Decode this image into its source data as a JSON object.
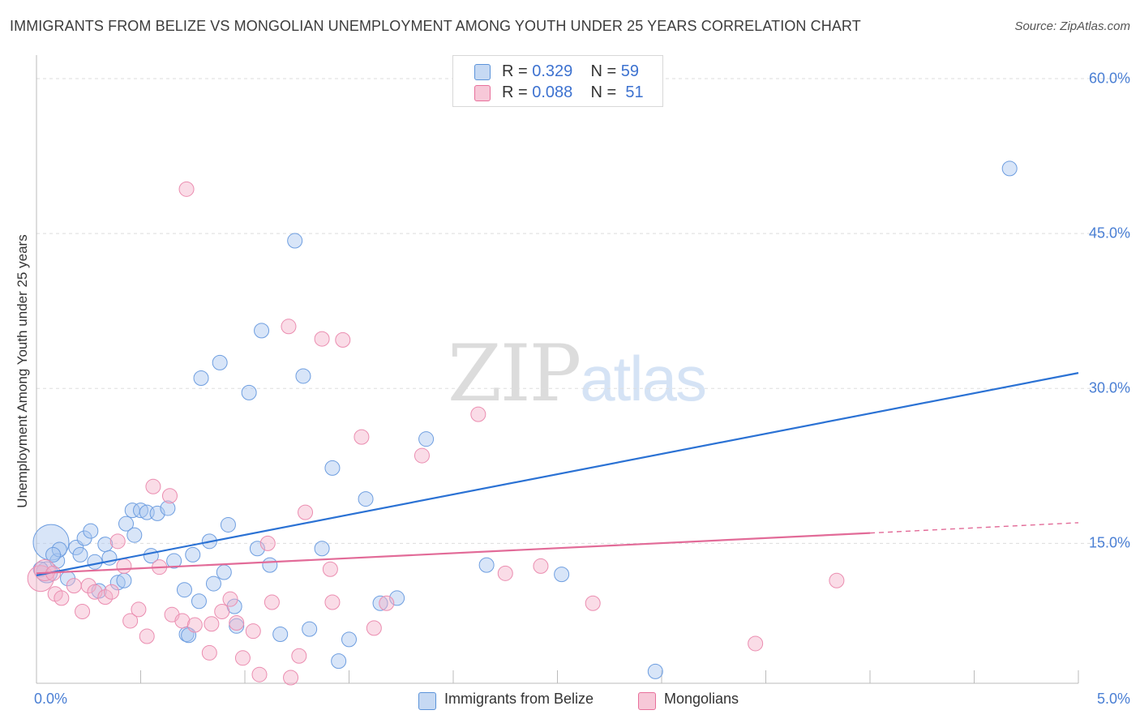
{
  "title": "IMMIGRANTS FROM BELIZE VS MONGOLIAN UNEMPLOYMENT AMONG YOUTH UNDER 25 YEARS CORRELATION CHART",
  "source": "Source: ZipAtlas.com",
  "watermark": {
    "zip": "ZIP",
    "atlas": "atlas"
  },
  "colors": {
    "blue": "#5b93d9",
    "blue_fill": "#c6d9f3",
    "pink": "#e8709b",
    "pink_fill": "#f7c8d8",
    "tick_text": "#4a7fd4",
    "grid": "#dddddd"
  },
  "legend": {
    "rows": [
      {
        "r_label": "R =",
        "r_value": "0.329",
        "n_label": "N =",
        "n_value": "59"
      },
      {
        "r_label": "R =",
        "r_value": "0.088",
        "n_label": "N =",
        "n_value": "51"
      }
    ]
  },
  "chart_data": {
    "type": "scatter",
    "title": "IMMIGRANTS FROM BELIZE VS MONGOLIAN UNEMPLOYMENT AMONG YOUTH UNDER 25 YEARS CORRELATION CHART",
    "xlabel": "",
    "ylabel": "Unemployment Among Youth under 25 years",
    "xlim": [
      0,
      5
    ],
    "ylim": [
      0,
      60
    ],
    "x_tick_labels": [
      "0.0%",
      "5.0%"
    ],
    "y_tick_labels": [
      "15.0%",
      "30.0%",
      "45.0%",
      "60.0%"
    ],
    "y_ticks": [
      15,
      30,
      45,
      60
    ],
    "series": [
      {
        "name": "Immigrants from Belize",
        "R": 0.329,
        "N": 59,
        "trend": {
          "x0": 0,
          "y0": 11.9,
          "x1": 5,
          "y1": 31.5
        },
        "points": [
          {
            "x": 0.07,
            "y": 15.1,
            "s": 22
          },
          {
            "x": 0.05,
            "y": 12.2,
            "s": 13
          },
          {
            "x": 0.1,
            "y": 13.3,
            "s": 9
          },
          {
            "x": 0.11,
            "y": 14.4,
            "s": 9
          },
          {
            "x": 0.15,
            "y": 11.6,
            "s": 9
          },
          {
            "x": 0.19,
            "y": 14.6,
            "s": 9
          },
          {
            "x": 0.21,
            "y": 13.9,
            "s": 9
          },
          {
            "x": 0.23,
            "y": 15.5,
            "s": 9
          },
          {
            "x": 0.26,
            "y": 16.2,
            "s": 9
          },
          {
            "x": 0.28,
            "y": 13.2,
            "s": 9
          },
          {
            "x": 0.3,
            "y": 10.4,
            "s": 9
          },
          {
            "x": 0.33,
            "y": 14.9,
            "s": 9
          },
          {
            "x": 0.35,
            "y": 13.6,
            "s": 9
          },
          {
            "x": 0.39,
            "y": 11.2,
            "s": 9
          },
          {
            "x": 0.42,
            "y": 11.4,
            "s": 9
          },
          {
            "x": 0.43,
            "y": 16.9,
            "s": 9
          },
          {
            "x": 0.46,
            "y": 18.2,
            "s": 9
          },
          {
            "x": 0.47,
            "y": 15.8,
            "s": 9
          },
          {
            "x": 0.5,
            "y": 18.2,
            "s": 9
          },
          {
            "x": 0.53,
            "y": 18.0,
            "s": 9
          },
          {
            "x": 0.55,
            "y": 13.8,
            "s": 9
          },
          {
            "x": 0.58,
            "y": 17.9,
            "s": 9
          },
          {
            "x": 0.63,
            "y": 18.4,
            "s": 9
          },
          {
            "x": 0.66,
            "y": 13.3,
            "s": 9
          },
          {
            "x": 0.71,
            "y": 10.5,
            "s": 9
          },
          {
            "x": 0.72,
            "y": 6.2,
            "s": 9
          },
          {
            "x": 0.73,
            "y": 6.1,
            "s": 9
          },
          {
            "x": 0.75,
            "y": 13.9,
            "s": 9
          },
          {
            "x": 0.78,
            "y": 9.4,
            "s": 9
          },
          {
            "x": 0.79,
            "y": 31.0,
            "s": 9
          },
          {
            "x": 0.83,
            "y": 15.2,
            "s": 9
          },
          {
            "x": 0.85,
            "y": 11.1,
            "s": 9
          },
          {
            "x": 0.88,
            "y": 32.5,
            "s": 9
          },
          {
            "x": 0.9,
            "y": 12.2,
            "s": 9
          },
          {
            "x": 0.92,
            "y": 16.8,
            "s": 9
          },
          {
            "x": 0.95,
            "y": 8.9,
            "s": 9
          },
          {
            "x": 0.96,
            "y": 7.0,
            "s": 9
          },
          {
            "x": 1.02,
            "y": 29.6,
            "s": 9
          },
          {
            "x": 1.06,
            "y": 14.5,
            "s": 9
          },
          {
            "x": 1.08,
            "y": 35.6,
            "s": 9
          },
          {
            "x": 1.12,
            "y": 12.9,
            "s": 9
          },
          {
            "x": 1.17,
            "y": 6.2,
            "s": 9
          },
          {
            "x": 1.24,
            "y": 44.3,
            "s": 9
          },
          {
            "x": 1.28,
            "y": 31.2,
            "s": 9
          },
          {
            "x": 1.31,
            "y": 6.7,
            "s": 9
          },
          {
            "x": 1.37,
            "y": 14.5,
            "s": 9
          },
          {
            "x": 1.42,
            "y": 22.3,
            "s": 9
          },
          {
            "x": 1.45,
            "y": 3.6,
            "s": 9
          },
          {
            "x": 1.5,
            "y": 5.7,
            "s": 9
          },
          {
            "x": 1.58,
            "y": 19.3,
            "s": 9
          },
          {
            "x": 1.65,
            "y": 9.2,
            "s": 9
          },
          {
            "x": 1.73,
            "y": 9.7,
            "s": 9
          },
          {
            "x": 1.87,
            "y": 25.1,
            "s": 9
          },
          {
            "x": 2.16,
            "y": 12.9,
            "s": 9
          },
          {
            "x": 2.52,
            "y": 12.0,
            "s": 9
          },
          {
            "x": 2.97,
            "y": 2.6,
            "s": 9
          },
          {
            "x": 4.67,
            "y": 51.3,
            "s": 9
          },
          {
            "x": 0.08,
            "y": 13.9,
            "s": 9
          },
          {
            "x": 0.02,
            "y": 12.5,
            "s": 9
          }
        ]
      },
      {
        "name": "Mongolians",
        "R": 0.088,
        "N": 51,
        "trend": {
          "x0": 0,
          "y0": 12.1,
          "x1": 4.0,
          "y1": 16.0,
          "dashed_to_x": 5,
          "dashed_to_y": 17.0
        },
        "points": [
          {
            "x": 0.02,
            "y": 11.6,
            "s": 16
          },
          {
            "x": 0.04,
            "y": 12.4,
            "s": 13
          },
          {
            "x": 0.08,
            "y": 12.1,
            "s": 9
          },
          {
            "x": 0.09,
            "y": 10.1,
            "s": 9
          },
          {
            "x": 0.12,
            "y": 9.7,
            "s": 9
          },
          {
            "x": 0.18,
            "y": 10.9,
            "s": 9
          },
          {
            "x": 0.22,
            "y": 8.4,
            "s": 9
          },
          {
            "x": 0.25,
            "y": 10.9,
            "s": 9
          },
          {
            "x": 0.28,
            "y": 10.3,
            "s": 9
          },
          {
            "x": 0.33,
            "y": 9.8,
            "s": 9
          },
          {
            "x": 0.36,
            "y": 10.3,
            "s": 9
          },
          {
            "x": 0.39,
            "y": 15.2,
            "s": 9
          },
          {
            "x": 0.42,
            "y": 12.8,
            "s": 9
          },
          {
            "x": 0.45,
            "y": 7.5,
            "s": 9
          },
          {
            "x": 0.49,
            "y": 8.6,
            "s": 9
          },
          {
            "x": 0.53,
            "y": 6.0,
            "s": 9
          },
          {
            "x": 0.56,
            "y": 20.5,
            "s": 9
          },
          {
            "x": 0.59,
            "y": 12.7,
            "s": 9
          },
          {
            "x": 0.64,
            "y": 19.6,
            "s": 9
          },
          {
            "x": 0.65,
            "y": 8.1,
            "s": 9
          },
          {
            "x": 0.7,
            "y": 7.5,
            "s": 9
          },
          {
            "x": 0.72,
            "y": 49.3,
            "s": 9
          },
          {
            "x": 0.76,
            "y": 7.1,
            "s": 9
          },
          {
            "x": 0.83,
            "y": 4.4,
            "s": 9
          },
          {
            "x": 0.84,
            "y": 7.2,
            "s": 9
          },
          {
            "x": 0.89,
            "y": 8.4,
            "s": 9
          },
          {
            "x": 0.93,
            "y": 9.6,
            "s": 9
          },
          {
            "x": 0.96,
            "y": 7.3,
            "s": 9
          },
          {
            "x": 0.99,
            "y": 3.9,
            "s": 9
          },
          {
            "x": 1.04,
            "y": 6.5,
            "s": 9
          },
          {
            "x": 1.07,
            "y": 2.3,
            "s": 9
          },
          {
            "x": 1.11,
            "y": 15.0,
            "s": 9
          },
          {
            "x": 1.13,
            "y": 9.3,
            "s": 9
          },
          {
            "x": 1.21,
            "y": 36.0,
            "s": 9
          },
          {
            "x": 1.22,
            "y": 2.0,
            "s": 9
          },
          {
            "x": 1.26,
            "y": 4.1,
            "s": 9
          },
          {
            "x": 1.29,
            "y": 18.0,
            "s": 9
          },
          {
            "x": 1.37,
            "y": 34.8,
            "s": 9
          },
          {
            "x": 1.41,
            "y": 12.5,
            "s": 9
          },
          {
            "x": 1.42,
            "y": 9.3,
            "s": 9
          },
          {
            "x": 1.47,
            "y": 34.7,
            "s": 9
          },
          {
            "x": 1.56,
            "y": 25.3,
            "s": 9
          },
          {
            "x": 1.62,
            "y": 6.8,
            "s": 9
          },
          {
            "x": 1.68,
            "y": 9.2,
            "s": 9
          },
          {
            "x": 1.85,
            "y": 23.5,
            "s": 9
          },
          {
            "x": 2.12,
            "y": 27.5,
            "s": 9
          },
          {
            "x": 2.25,
            "y": 12.1,
            "s": 9
          },
          {
            "x": 2.42,
            "y": 12.8,
            "s": 9
          },
          {
            "x": 2.67,
            "y": 9.2,
            "s": 9
          },
          {
            "x": 3.45,
            "y": 5.3,
            "s": 9
          },
          {
            "x": 3.84,
            "y": 11.4,
            "s": 9
          }
        ]
      }
    ]
  },
  "bottom_legend": [
    {
      "label": "Immigrants from Belize"
    },
    {
      "label": "Mongolians"
    }
  ]
}
